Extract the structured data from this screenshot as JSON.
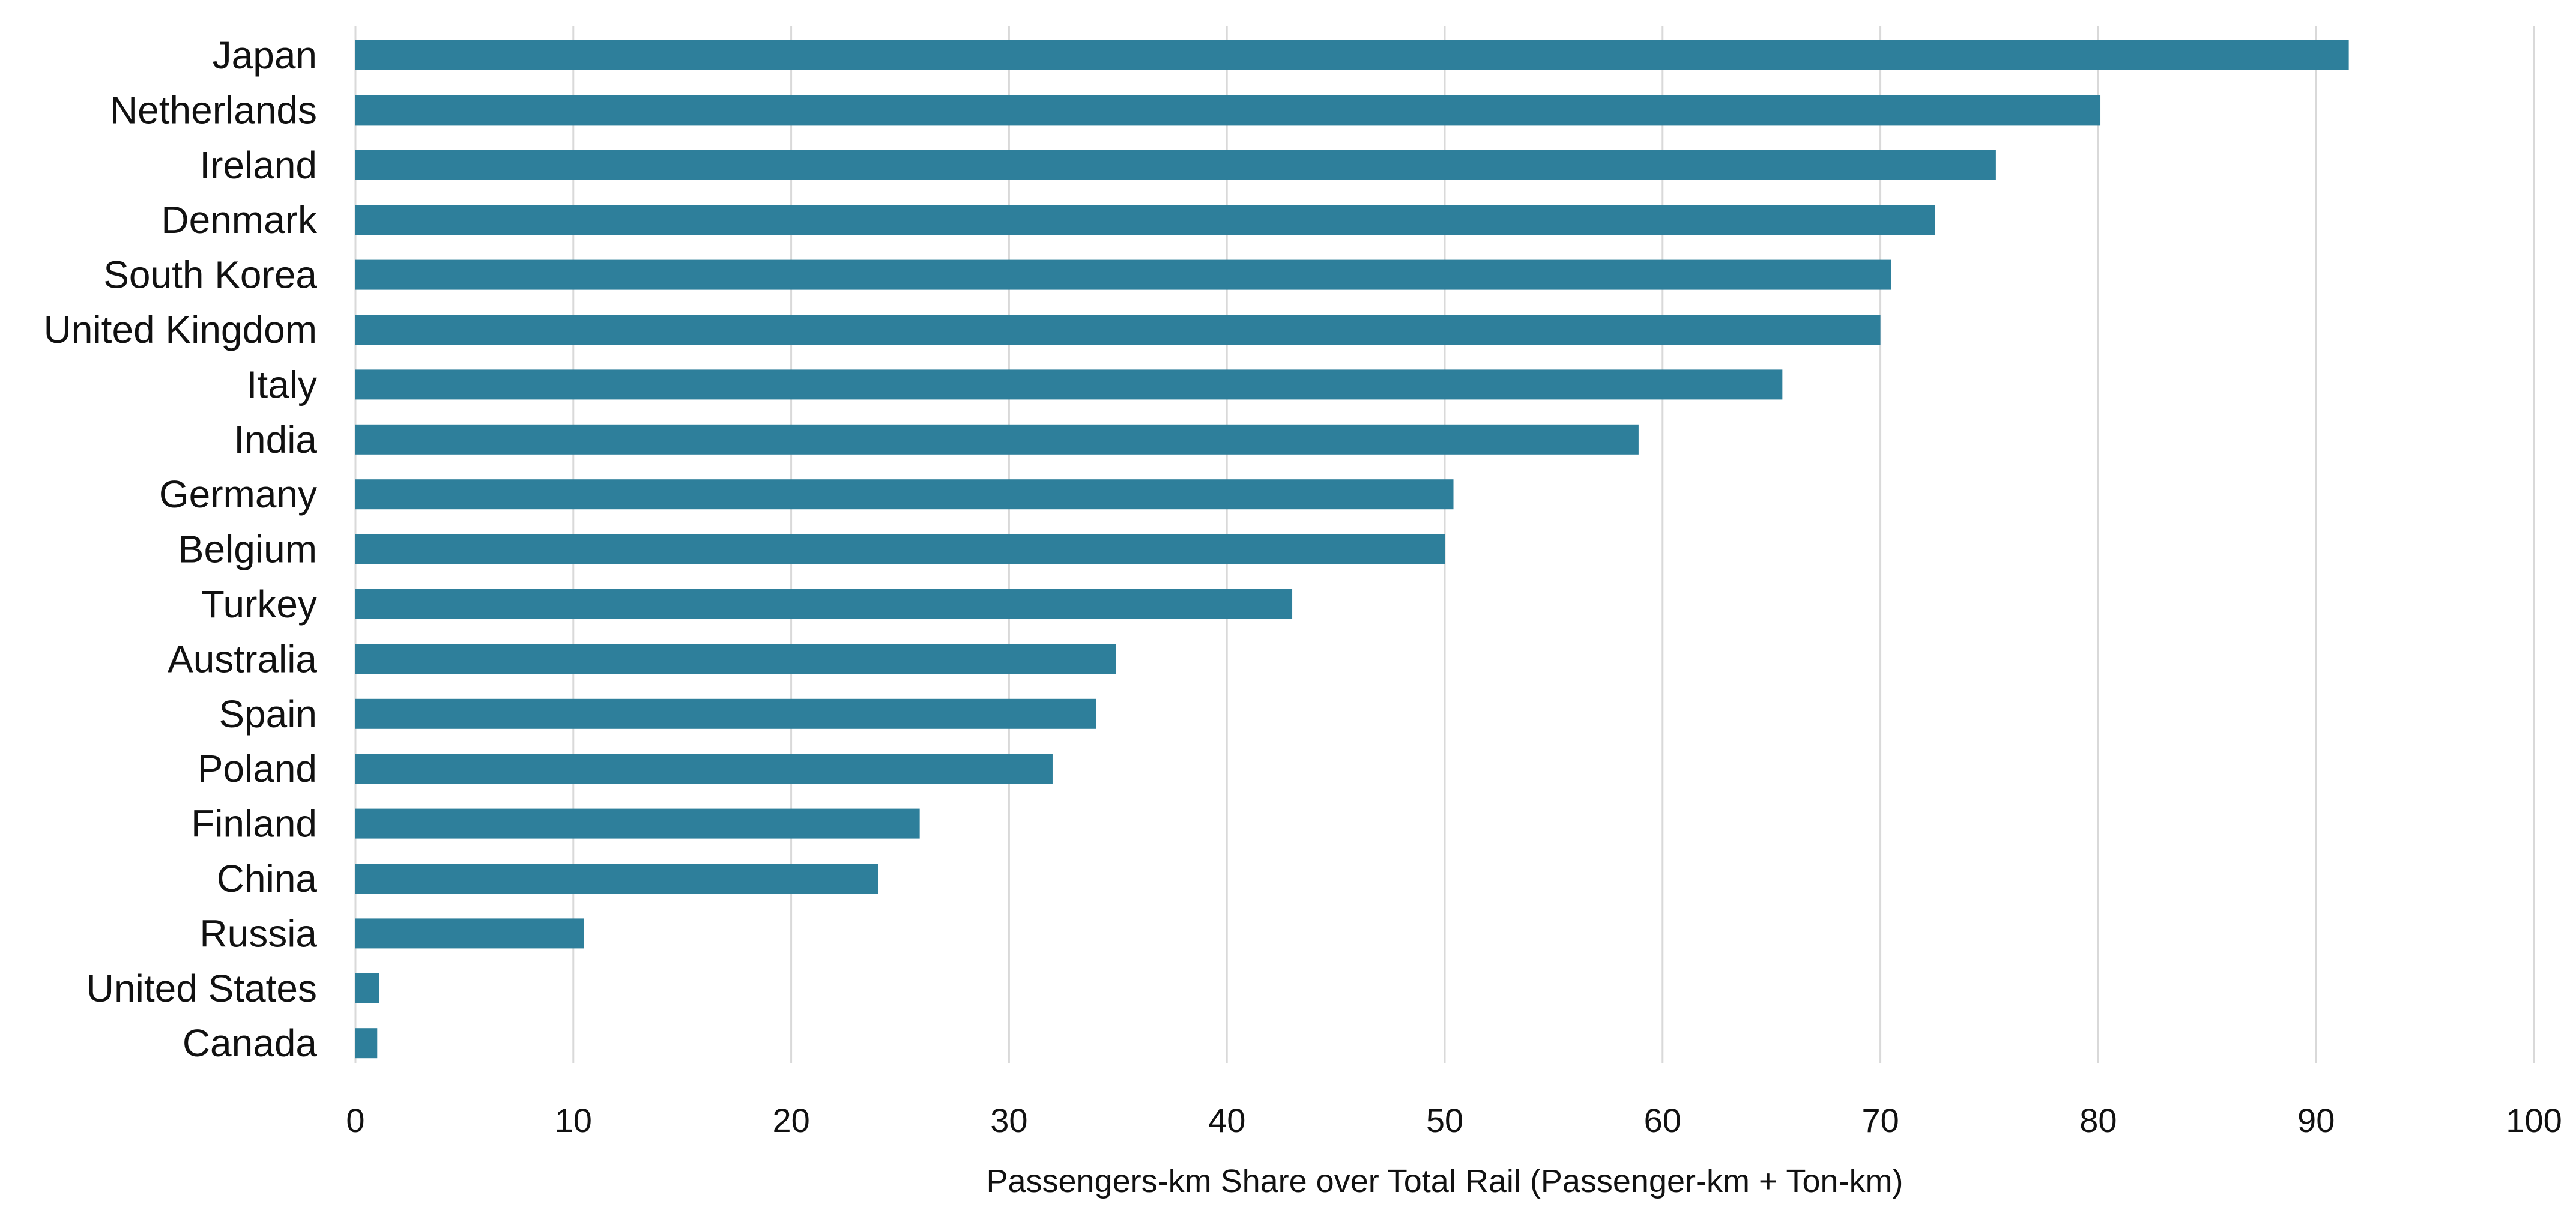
{
  "chart_data": {
    "type": "bar",
    "orientation": "horizontal",
    "categories": [
      "Japan",
      "Netherlands",
      "Ireland",
      "Denmark",
      "South Korea",
      "United Kingdom",
      "Italy",
      "India",
      "Germany",
      "Belgium",
      "Turkey",
      "Australia",
      "Spain",
      "Poland",
      "Finland",
      "China",
      "Russia",
      "United States",
      "Canada"
    ],
    "values": [
      91.5,
      80.1,
      75.3,
      72.5,
      70.5,
      70.0,
      65.5,
      58.9,
      50.4,
      50.0,
      43.0,
      34.9,
      34.0,
      32.0,
      25.9,
      24.0,
      10.5,
      1.1,
      1.0
    ],
    "title": "",
    "xlabel": "Passengers-km Share over Total Rail (Passenger-km + Ton-km)",
    "ylabel": "",
    "xlim": [
      0,
      100
    ],
    "xticks": [
      0,
      10,
      20,
      30,
      40,
      50,
      60,
      70,
      80,
      90,
      100
    ],
    "grid": true,
    "bar_color": "#2e7f9b"
  }
}
